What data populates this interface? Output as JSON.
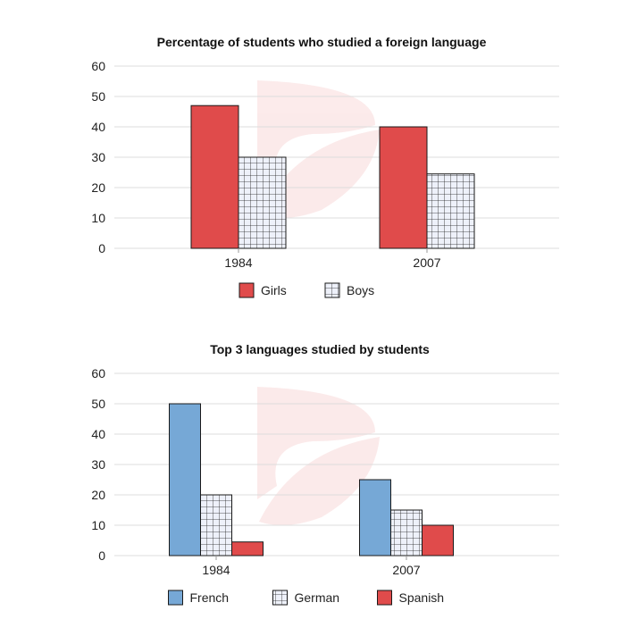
{
  "chart_data": [
    {
      "type": "bar",
      "title": "Percentage of students who studied a foreign language",
      "categories": [
        "1984",
        "2007"
      ],
      "series": [
        {
          "name": "Girls",
          "values": [
            47,
            40
          ],
          "color": "#e04b4b",
          "pattern": "solid"
        },
        {
          "name": "Boys",
          "values": [
            30,
            24.5
          ],
          "color": "#eef1fa",
          "pattern": "grid"
        }
      ],
      "ylim": [
        0,
        60
      ],
      "yticks": [
        "0",
        "10",
        "20",
        "30",
        "40",
        "50",
        "60"
      ],
      "grid": true,
      "legend": "bottom-center"
    },
    {
      "type": "bar",
      "title": "Top 3 languages studied by students",
      "categories": [
        "1984",
        "2007"
      ],
      "series": [
        {
          "name": "French",
          "values": [
            50,
            25
          ],
          "color": "#76a8d6",
          "pattern": "solid"
        },
        {
          "name": "German",
          "values": [
            20,
            15
          ],
          "color": "#eef1fa",
          "pattern": "grid"
        },
        {
          "name": "Spanish",
          "values": [
            4.5,
            10
          ],
          "color": "#e04b4b",
          "pattern": "solid"
        }
      ],
      "ylim": [
        0,
        60
      ],
      "yticks": [
        "0",
        "10",
        "20",
        "30",
        "40",
        "50",
        "60"
      ],
      "grid": true,
      "legend": "bottom-center"
    }
  ]
}
